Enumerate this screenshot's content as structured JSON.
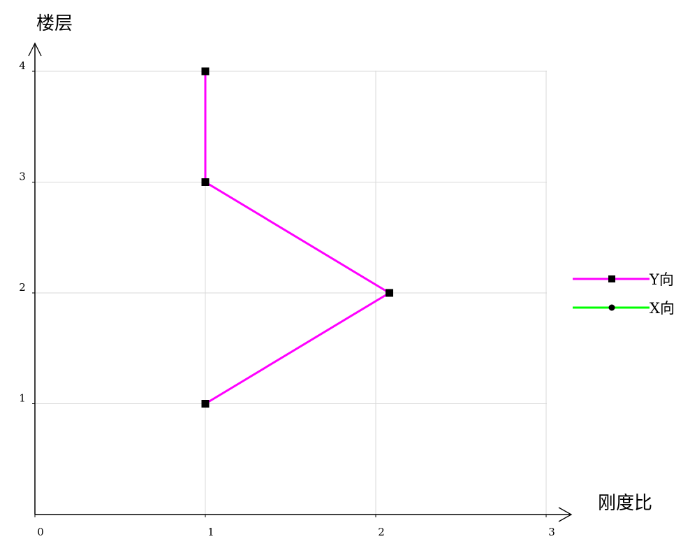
{
  "chart_data": {
    "type": "line",
    "xlabel": "刚度比",
    "ylabel": "楼层",
    "xlim": [
      0,
      3
    ],
    "ylim": [
      0,
      4
    ],
    "x_ticks": [
      "0",
      "1",
      "2",
      "3"
    ],
    "y_ticks": [
      "1",
      "2",
      "3",
      "4"
    ],
    "grid": true,
    "legend_position": "right",
    "series": [
      {
        "name": "Y向",
        "color": "#ff00ff",
        "marker": "square",
        "points": [
          {
            "x": 1.0,
            "y": 1
          },
          {
            "x": 2.08,
            "y": 2
          },
          {
            "x": 1.0,
            "y": 3
          },
          {
            "x": 1.0,
            "y": 4
          }
        ]
      },
      {
        "name": "X向",
        "color": "#00ff00",
        "marker": "circle",
        "points": []
      }
    ]
  }
}
